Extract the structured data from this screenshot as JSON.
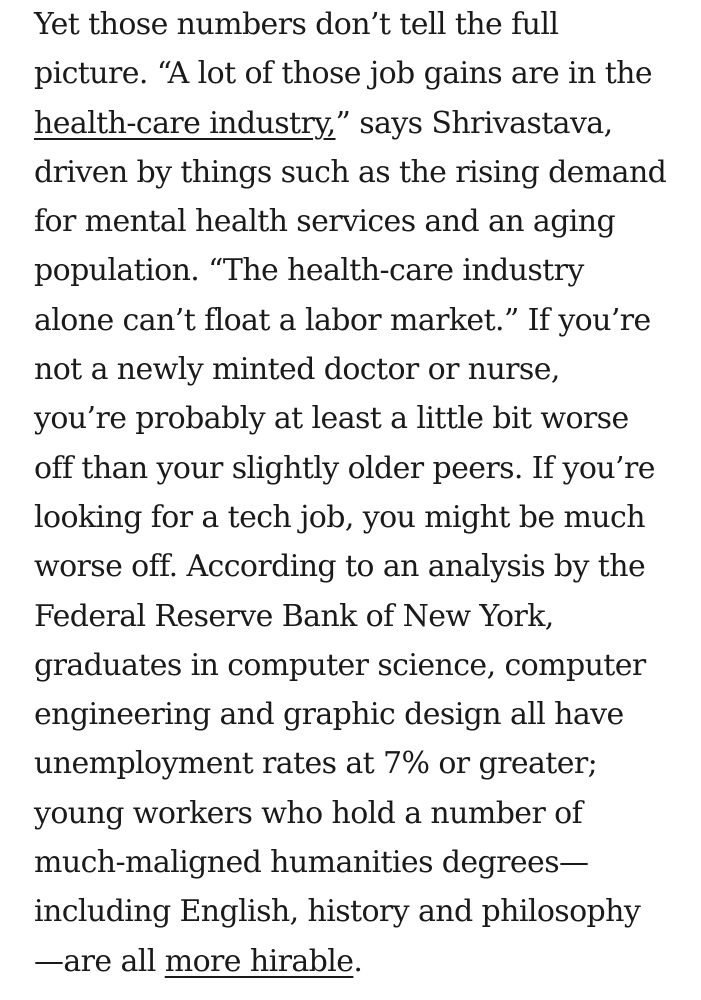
{
  "paragraph": {
    "lines": [
      {
        "segments": [
          {
            "text": "Yet those numbers don’t tell the full"
          }
        ]
      },
      {
        "segments": [
          {
            "text": "picture. “A lot of those job gains are in the"
          }
        ]
      },
      {
        "segments": [
          {
            "text": "health-care industry,",
            "link": true
          },
          {
            "text": "” says Shrivastava,"
          }
        ]
      },
      {
        "segments": [
          {
            "text": "driven by things such as the rising demand"
          }
        ]
      },
      {
        "segments": [
          {
            "text": "for mental health services and an aging"
          }
        ]
      },
      {
        "segments": [
          {
            "text": "population. “The health-care industry"
          }
        ]
      },
      {
        "segments": [
          {
            "text": "alone can’t float a labor market.” If you’re"
          }
        ]
      },
      {
        "segments": [
          {
            "text": "not a newly minted doctor or nurse,"
          }
        ]
      },
      {
        "segments": [
          {
            "text": "you’re probably at least a little bit worse"
          }
        ]
      },
      {
        "segments": [
          {
            "text": "off than your slightly older peers. If you’re"
          }
        ]
      },
      {
        "segments": [
          {
            "text": "looking for a tech job, you might be much"
          }
        ]
      },
      {
        "segments": [
          {
            "text": "worse off. According to an analysis by the"
          }
        ]
      },
      {
        "segments": [
          {
            "text": "Federal Reserve Bank of New York,"
          }
        ]
      },
      {
        "segments": [
          {
            "text": "graduates in computer science, computer"
          }
        ]
      },
      {
        "segments": [
          {
            "text": "engineering and graphic design all have"
          }
        ]
      },
      {
        "segments": [
          {
            "text": "unemployment rates at 7% or greater;"
          }
        ]
      },
      {
        "segments": [
          {
            "text": "young workers who hold a number of"
          }
        ]
      },
      {
        "segments": [
          {
            "text": "much-maligned humanities degrees—"
          }
        ]
      },
      {
        "segments": [
          {
            "text": "including English, history and philosophy"
          }
        ]
      },
      {
        "segments": [
          {
            "text": "—are all "
          },
          {
            "text": "more hirable",
            "link": true
          },
          {
            "text": "."
          }
        ]
      }
    ]
  }
}
